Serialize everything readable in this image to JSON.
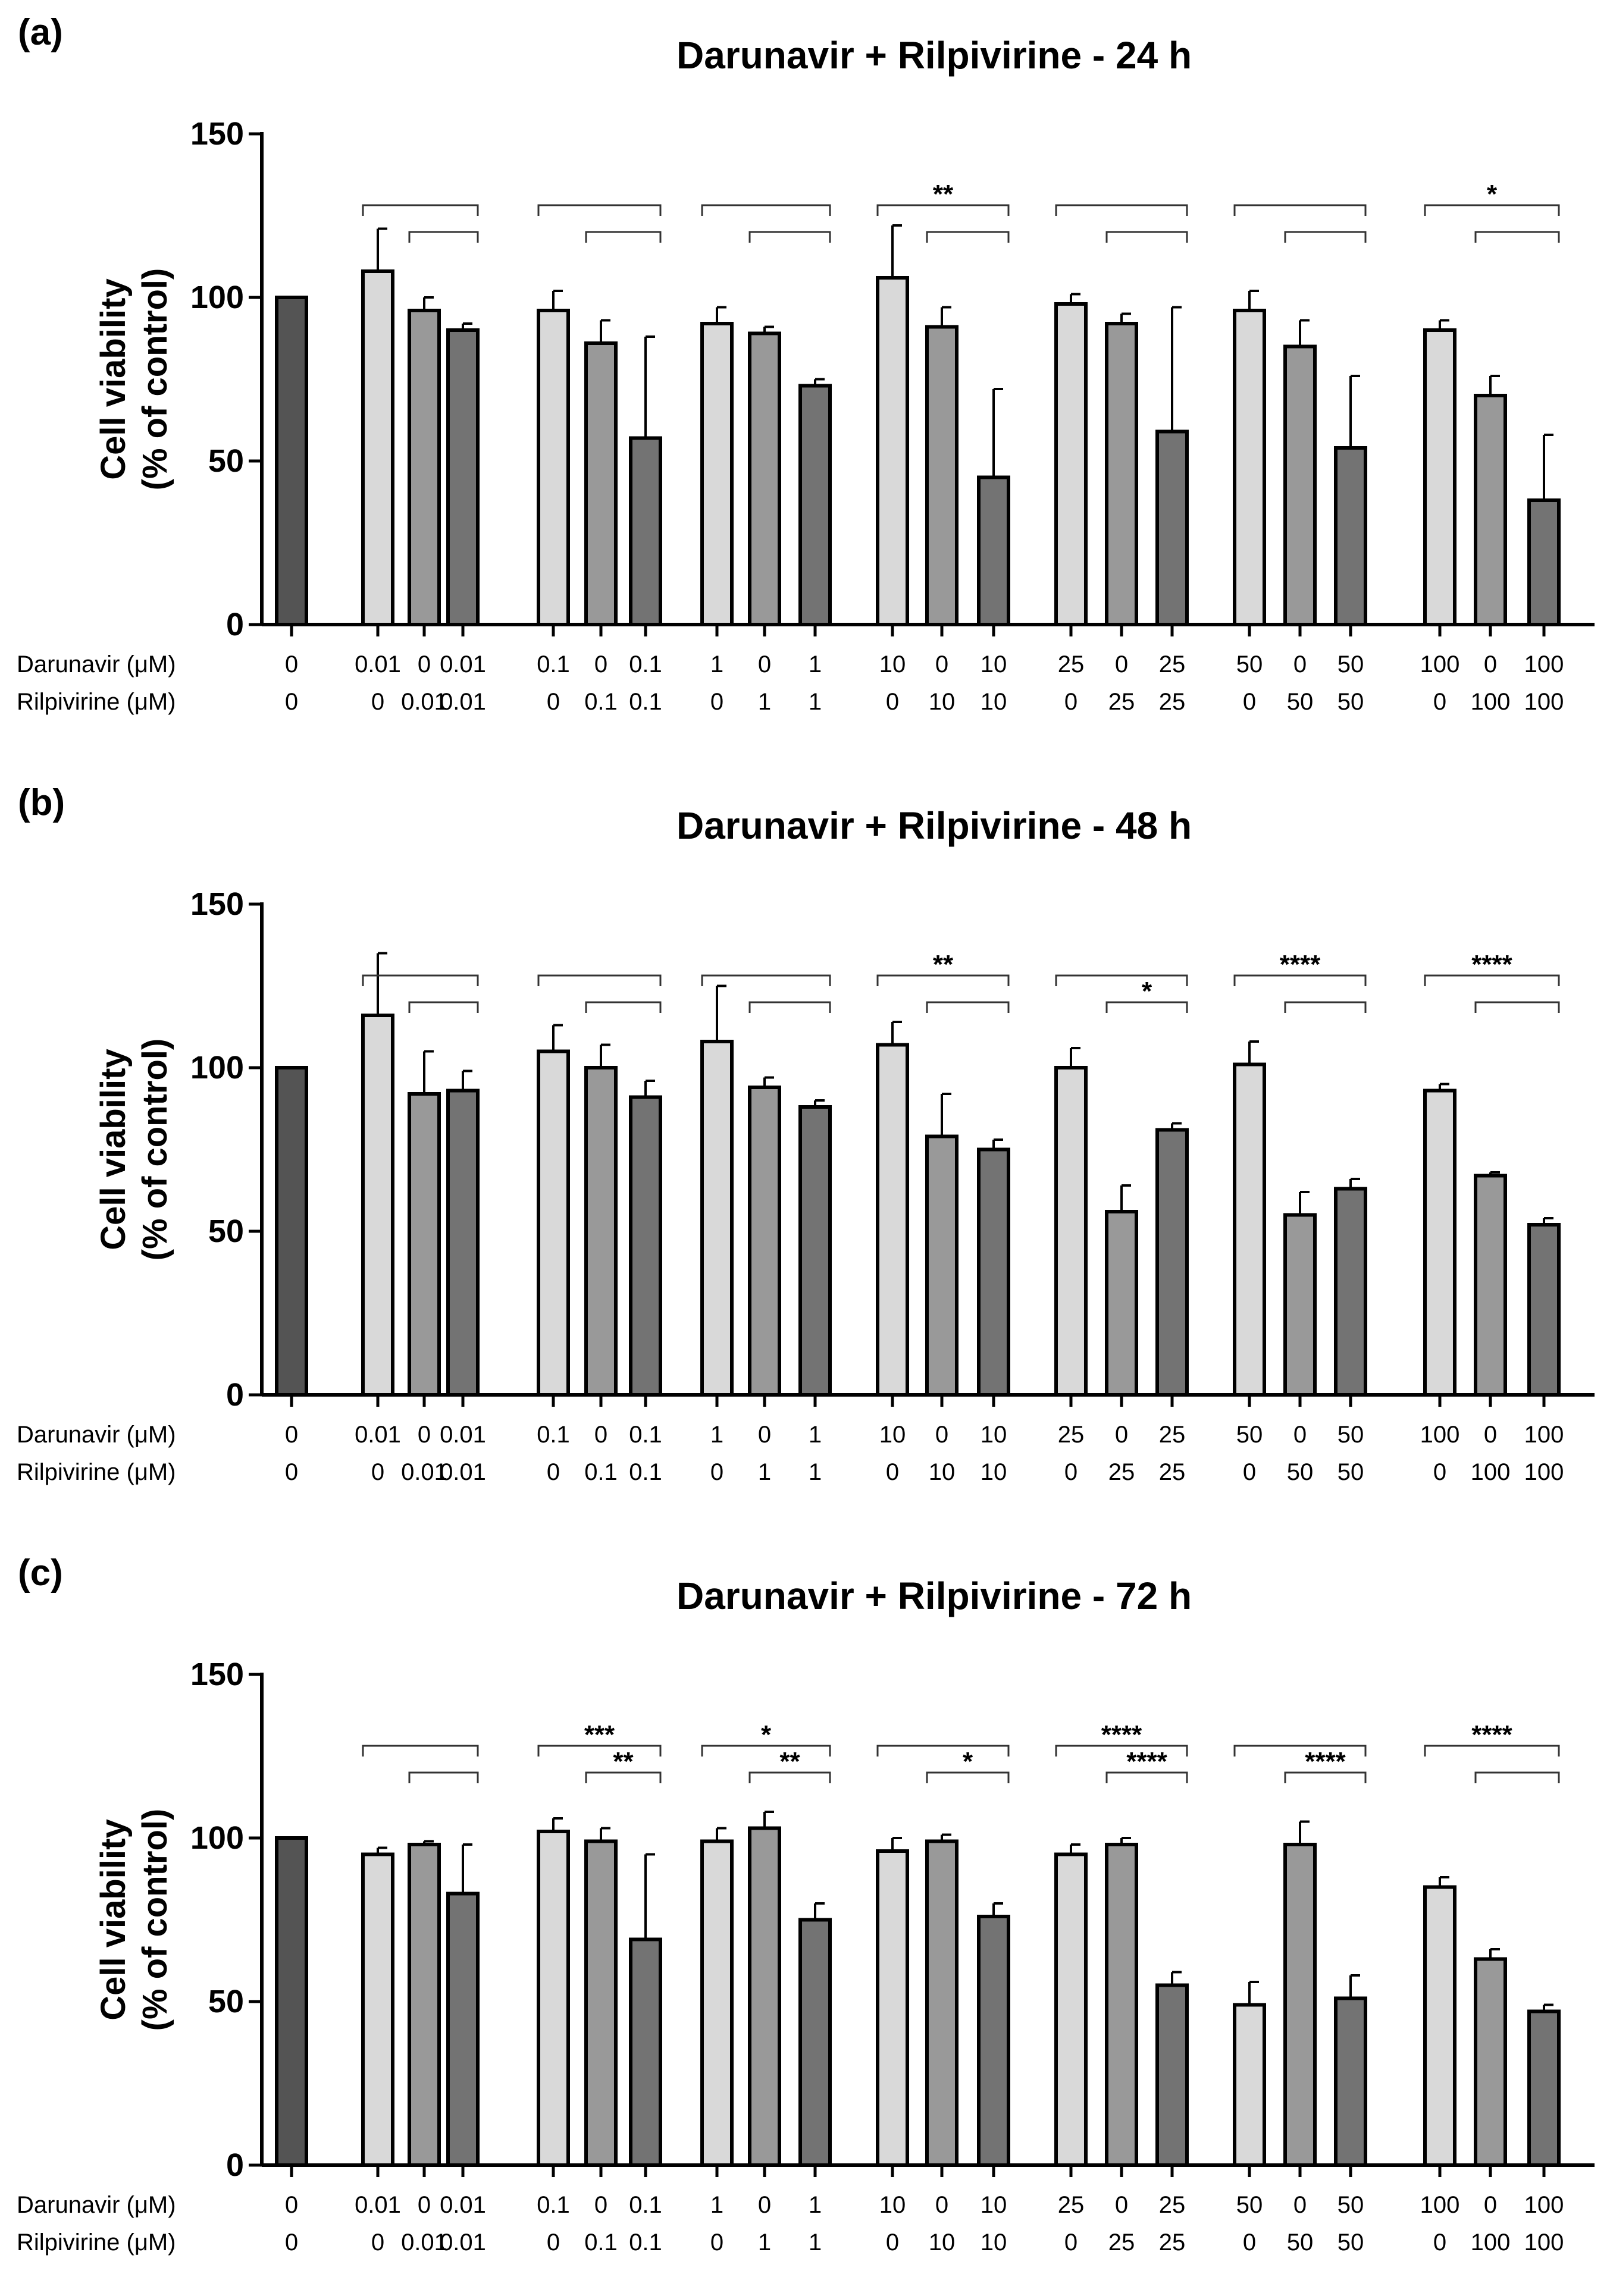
{
  "chart_data": [
    {
      "type": "bar",
      "panel_letter": "(a)",
      "title": "Darunavir + Rilpivirine - 24 h",
      "ylabel_line1": "Cell viability",
      "ylabel_line2": "(% of control)",
      "ylim": [
        0,
        150
      ],
      "yticks": [
        "0",
        "50",
        "100",
        "150"
      ],
      "row_labels": [
        "Darunavir (μM)",
        "Rilpivirine (μM)"
      ],
      "darunavir": [
        "0",
        "0.01",
        "0",
        "0.01",
        "0.1",
        "0",
        "0.1",
        "1",
        "0",
        "1",
        "10",
        "0",
        "10",
        "25",
        "0",
        "25",
        "50",
        "0",
        "50",
        "100",
        "0",
        "100"
      ],
      "rilpivirine": [
        "0",
        "0",
        "0.01",
        "0.01",
        "0",
        "0.1",
        "0.1",
        "0",
        "1",
        "1",
        "0",
        "10",
        "10",
        "0",
        "25",
        "25",
        "0",
        "50",
        "50",
        "0",
        "100",
        "100"
      ],
      "values": [
        100,
        108,
        96,
        90,
        96,
        86,
        57,
        92,
        89,
        73,
        106,
        91,
        45,
        98,
        92,
        59,
        96,
        85,
        54,
        90,
        70,
        38
      ],
      "errors": [
        0,
        13,
        4,
        2,
        6,
        7,
        31,
        5,
        2,
        2,
        16,
        6,
        27,
        3,
        3,
        38,
        6,
        8,
        22,
        3,
        6,
        20
      ],
      "groups": [
        {
          "outer": "",
          "inner": ""
        },
        {
          "outer": "",
          "inner": ""
        },
        {
          "outer": "",
          "inner": ""
        },
        {
          "outer": "**",
          "inner": ""
        },
        {
          "outer": "",
          "inner": ""
        },
        {
          "outer": "",
          "inner": ""
        },
        {
          "outer": "*",
          "inner": ""
        }
      ]
    },
    {
      "type": "bar",
      "panel_letter": "(b)",
      "title": "Darunavir + Rilpivirine - 48 h",
      "ylabel_line1": "Cell viability",
      "ylabel_line2": "(% of control)",
      "ylim": [
        0,
        150
      ],
      "yticks": [
        "0",
        "50",
        "100",
        "150"
      ],
      "row_labels": [
        "Darunavir (μM)",
        "Rilpivirine (μM)"
      ],
      "darunavir": [
        "0",
        "0.01",
        "0",
        "0.01",
        "0.1",
        "0",
        "0.1",
        "1",
        "0",
        "1",
        "10",
        "0",
        "10",
        "25",
        "0",
        "25",
        "50",
        "0",
        "50",
        "100",
        "0",
        "100"
      ],
      "rilpivirine": [
        "0",
        "0",
        "0.01",
        "0.01",
        "0",
        "0.1",
        "0.1",
        "0",
        "1",
        "1",
        "0",
        "10",
        "10",
        "0",
        "25",
        "25",
        "0",
        "50",
        "50",
        "0",
        "100",
        "100"
      ],
      "values": [
        100,
        116,
        92,
        93,
        105,
        100,
        91,
        108,
        94,
        88,
        107,
        79,
        75,
        100,
        56,
        81,
        101,
        55,
        63,
        93,
        67,
        52
      ],
      "errors": [
        0,
        19,
        13,
        6,
        8,
        7,
        5,
        17,
        3,
        2,
        7,
        13,
        3,
        6,
        8,
        2,
        7,
        7,
        3,
        2,
        1,
        2
      ],
      "groups": [
        {
          "outer": "",
          "inner": ""
        },
        {
          "outer": "",
          "inner": ""
        },
        {
          "outer": "",
          "inner": ""
        },
        {
          "outer": "**",
          "inner": ""
        },
        {
          "outer": "",
          "inner": "*"
        },
        {
          "outer": "****",
          "inner": ""
        },
        {
          "outer": "****",
          "inner": ""
        }
      ]
    },
    {
      "type": "bar",
      "panel_letter": "(c)",
      "title": "Darunavir + Rilpivirine - 72 h",
      "ylabel_line1": "Cell viability",
      "ylabel_line2": "(% of control)",
      "ylim": [
        0,
        150
      ],
      "yticks": [
        "0",
        "50",
        "100",
        "150"
      ],
      "row_labels": [
        "Darunavir (μM)",
        "Rilpivirine (μM)"
      ],
      "darunavir": [
        "0",
        "0.01",
        "0",
        "0.01",
        "0.1",
        "0",
        "0.1",
        "1",
        "0",
        "1",
        "10",
        "0",
        "10",
        "25",
        "0",
        "25",
        "50",
        "0",
        "50",
        "100",
        "0",
        "100"
      ],
      "rilpivirine": [
        "0",
        "0",
        "0.01",
        "0.01",
        "0",
        "0.1",
        "0.1",
        "0",
        "1",
        "1",
        "0",
        "10",
        "10",
        "0",
        "25",
        "25",
        "0",
        "50",
        "50",
        "0",
        "100",
        "100"
      ],
      "values": [
        100,
        95,
        98,
        83,
        102,
        99,
        69,
        99,
        103,
        75,
        96,
        99,
        76,
        95,
        98,
        55,
        49,
        98,
        51,
        85,
        63,
        47
      ],
      "errors": [
        0,
        2,
        1,
        15,
        4,
        4,
        26,
        4,
        5,
        5,
        4,
        2,
        4,
        3,
        2,
        4,
        7,
        7,
        7,
        3,
        3,
        2
      ],
      "groups": [
        {
          "outer": "",
          "inner": ""
        },
        {
          "outer": "***",
          "inner": "**"
        },
        {
          "outer": "*",
          "inner": "**"
        },
        {
          "outer": "",
          "inner": "*"
        },
        {
          "outer": "****",
          "inner": "****"
        },
        {
          "outer": "",
          "inner": "****"
        },
        {
          "outer": "****",
          "inner": ""
        }
      ]
    }
  ],
  "colors": {
    "control_bar": "#545454",
    "darunavir_bar": "#d9d9d9",
    "rilpivirine_bar": "#999999",
    "combination_bar": "#737373"
  }
}
